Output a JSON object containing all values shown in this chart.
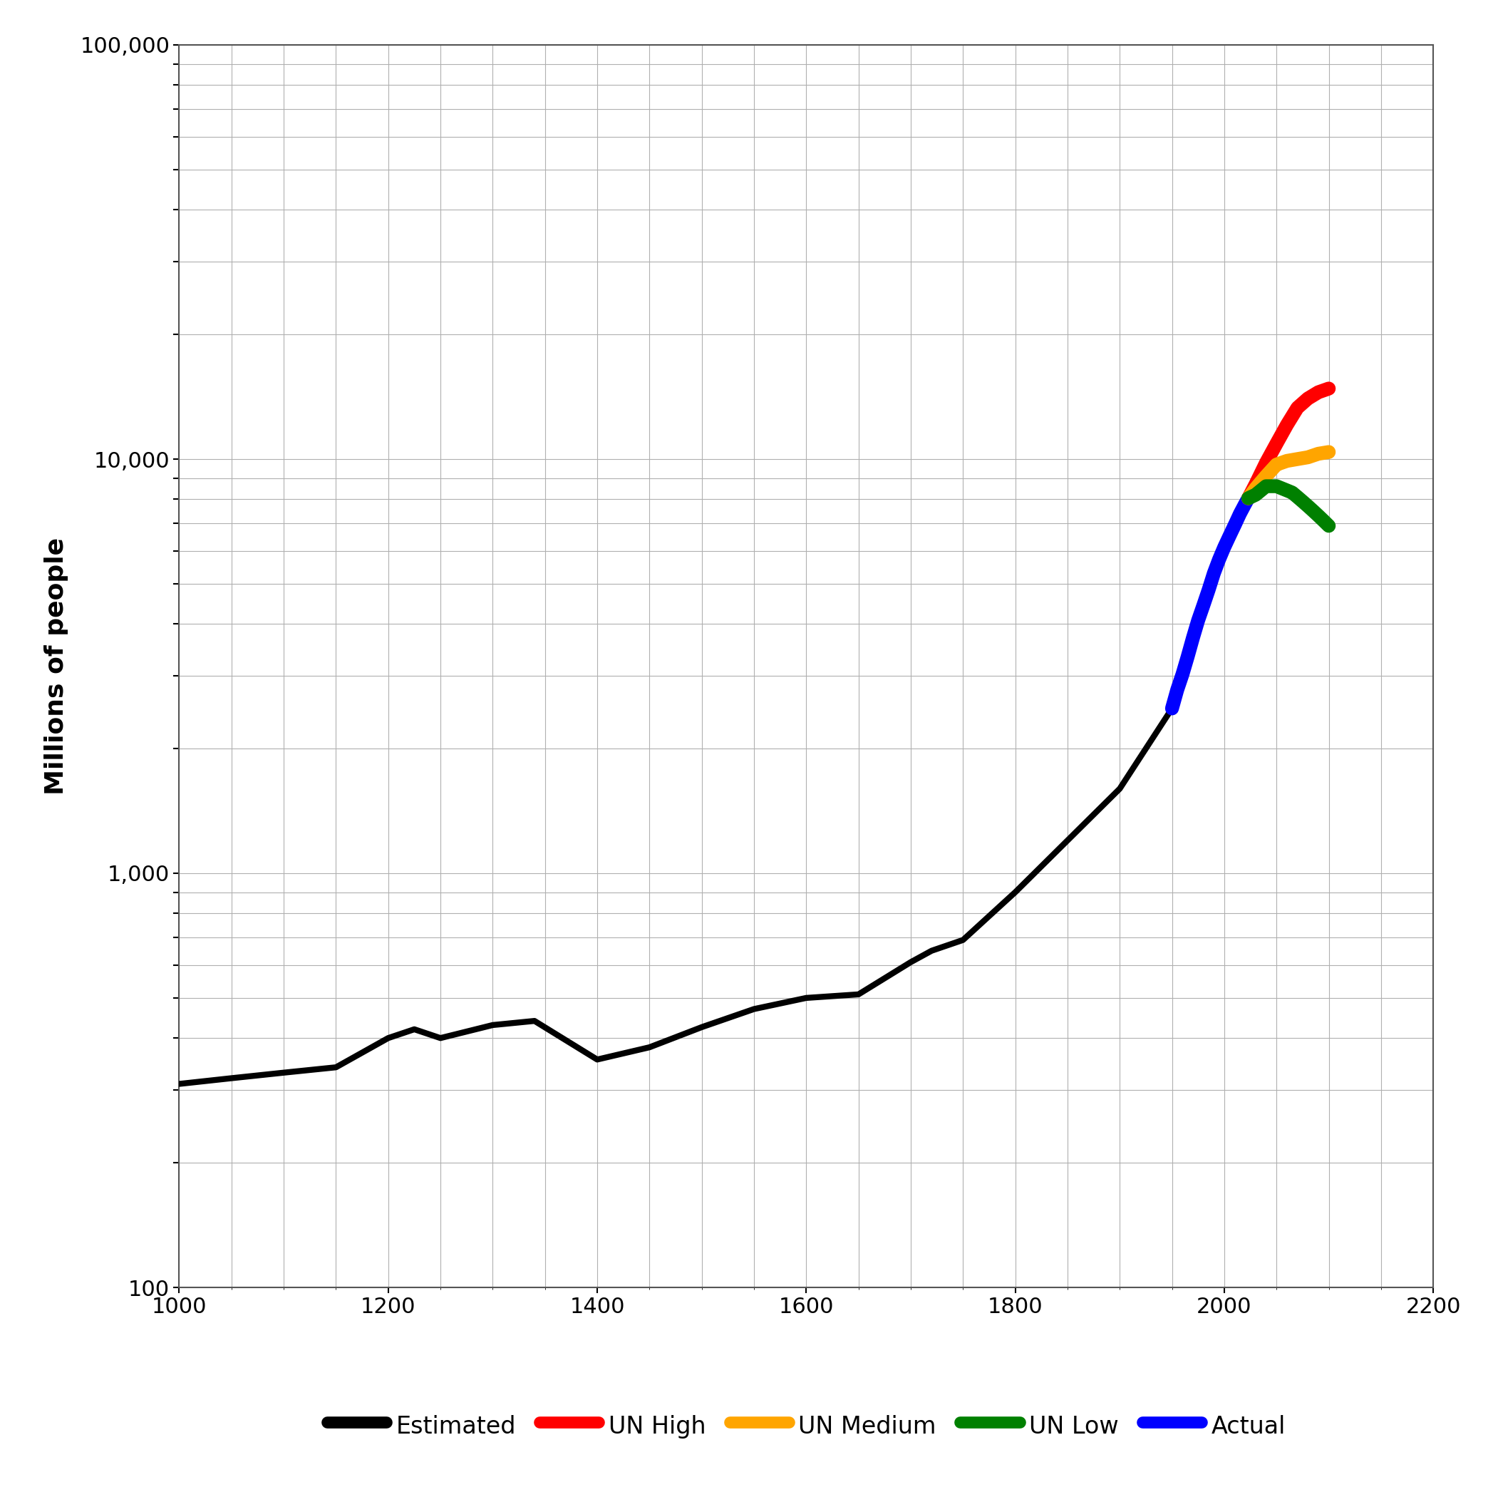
{
  "title": "",
  "ylabel": "Millions of people",
  "xlim": [
    1000,
    2200
  ],
  "ylim_log": [
    100,
    100000
  ],
  "xticks": [
    1000,
    1200,
    1400,
    1600,
    1800,
    2000,
    2200
  ],
  "background_color": "#ffffff",
  "grid_color": "#b0b0b0",
  "estimated_lw": 6,
  "projection_lw": 14,
  "actual_lw": 14,
  "estimated_color": "#000000",
  "actual_color": "#0000ff",
  "un_high_color": "#ff0000",
  "un_medium_color": "#ffa500",
  "un_low_color": "#008000",
  "legend_fontsize": 24,
  "ylabel_fontsize": 26,
  "tick_fontsize": 22,
  "estimated_data": {
    "years": [
      1000,
      1050,
      1100,
      1150,
      1200,
      1225,
      1250,
      1300,
      1340,
      1400,
      1450,
      1500,
      1550,
      1600,
      1650,
      1700,
      1720,
      1750,
      1800,
      1850,
      1900,
      1950
    ],
    "pop": [
      310,
      320,
      330,
      340,
      400,
      420,
      400,
      430,
      440,
      355,
      380,
      425,
      470,
      500,
      510,
      610,
      650,
      690,
      900,
      1200,
      1600,
      2500
    ]
  },
  "actual_data": {
    "years": [
      1950,
      1955,
      1960,
      1965,
      1970,
      1975,
      1980,
      1985,
      1990,
      1995,
      2000,
      2005,
      2010,
      2015,
      2020,
      2023
    ],
    "pop": [
      2500,
      2773,
      3022,
      3335,
      3700,
      4079,
      4435,
      4831,
      5296,
      5720,
      6127,
      6520,
      6930,
      7380,
      7795,
      8045
    ]
  },
  "un_high_data": {
    "years": [
      2023,
      2030,
      2040,
      2050,
      2060,
      2070,
      2080,
      2090,
      2100
    ],
    "pop": [
      8045,
      8700,
      9800,
      10900,
      12100,
      13300,
      14000,
      14500,
      14800
    ]
  },
  "un_medium_data": {
    "years": [
      2023,
      2030,
      2040,
      2050,
      2055,
      2060,
      2070,
      2080,
      2090,
      2100
    ],
    "pop": [
      8045,
      8500,
      9100,
      9700,
      9800,
      9900,
      10000,
      10100,
      10300,
      10400
    ]
  },
  "un_low_data": {
    "years": [
      2023,
      2030,
      2040,
      2050,
      2060,
      2065,
      2070,
      2075,
      2080,
      2085,
      2090,
      2095,
      2100
    ],
    "pop": [
      8045,
      8200,
      8600,
      8600,
      8400,
      8300,
      8100,
      7900,
      7700,
      7500,
      7300,
      7100,
      6900
    ]
  },
  "legend_order": [
    "Estimated",
    "UN High",
    "UN Medium",
    "UN Low",
    "Actual"
  ]
}
